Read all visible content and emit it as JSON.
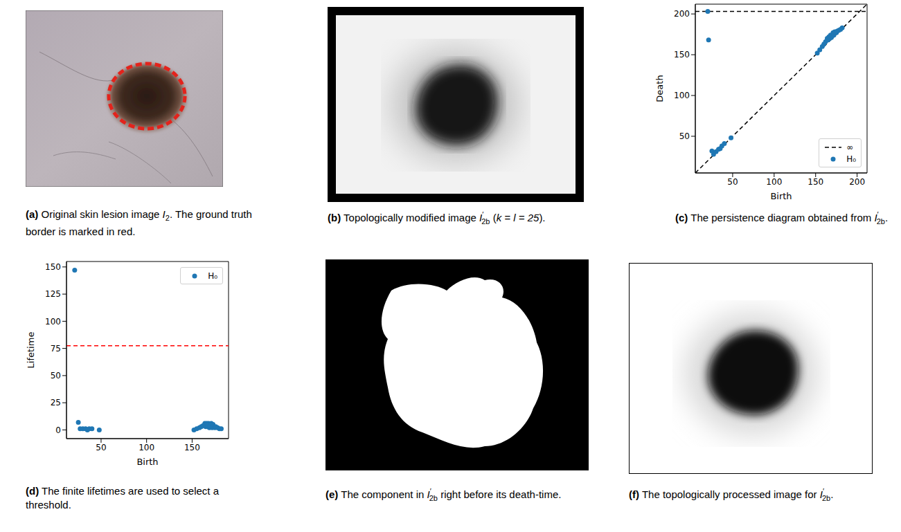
{
  "captions": [
    {
      "label": "(a)",
      "parts": [
        "Original skin lesion image ",
        {
          "math": "I",
          "sub": "2"
        },
        ". The ground truth border is marked in red."
      ]
    },
    {
      "label": "(b)",
      "parts": [
        "Topologically modified image ",
        {
          "math": "I",
          "sup": "′",
          "sub": "2b"
        },
        " (",
        {
          "math": "k = l = 25"
        },
        ")."
      ]
    },
    {
      "label": "(c)",
      "parts": [
        "The persistence diagram obtained from ",
        {
          "math": "I",
          "sup": "′",
          "sub": "2b"
        },
        "."
      ]
    },
    {
      "label": "(d)",
      "parts": [
        "The finite lifetimes are used to select a threshold."
      ]
    },
    {
      "label": "(e)",
      "parts": [
        "The component in ",
        {
          "math": "I",
          "sup": "′",
          "sub": "2b"
        },
        " right before its death-time."
      ]
    },
    {
      "label": "(f)",
      "parts": [
        "The topologically processed image for ",
        {
          "math": "I",
          "sup": "′",
          "sub": "2b"
        },
        "."
      ]
    }
  ],
  "chart_data": [
    {
      "type": "scatter",
      "xlabel": "Birth",
      "ylabel": "Death",
      "xlim": [
        5,
        212
      ],
      "ylim": [
        5,
        212
      ],
      "xticks": [
        50,
        100,
        150,
        200
      ],
      "yticks": [
        50,
        100,
        150,
        200
      ],
      "grid": false,
      "legend": "lower right",
      "reference_lines": [
        {
          "name": "∞",
          "y": 203,
          "color": "#000000",
          "line_style": "dashed"
        }
      ],
      "series": [
        {
          "type": "line",
          "color": "#000000",
          "line_style": "dashed",
          "x": [
            5,
            212
          ],
          "y": [
            5,
            212
          ]
        },
        {
          "name": "H₀",
          "color": "#1f77b4",
          "marker": "circle",
          "x": [
            20,
            21,
            25,
            27,
            30,
            33,
            35,
            37,
            40,
            48,
            152,
            155,
            158,
            160,
            162,
            164,
            165,
            166,
            167,
            168,
            169,
            170,
            171,
            172,
            173,
            175,
            176,
            178,
            180,
            182
          ],
          "y": [
            203,
            168,
            32,
            28,
            31,
            34,
            35,
            38,
            41,
            48,
            152,
            156,
            160,
            163,
            166,
            170,
            168,
            172,
            170,
            174,
            171,
            173,
            177,
            174,
            178,
            177,
            179,
            180,
            181,
            183
          ]
        }
      ]
    },
    {
      "type": "scatter",
      "xlabel": "Birth",
      "ylabel": "Lifetime",
      "xlim": [
        12,
        190
      ],
      "ylim": [
        -8,
        155
      ],
      "xticks": [
        50,
        100,
        150
      ],
      "yticks": [
        0,
        25,
        50,
        75,
        100,
        125,
        150
      ],
      "grid": false,
      "legend": "upper right",
      "reference_lines": [
        {
          "y": 77.5,
          "color": "#ff0000",
          "line_style": "dashed"
        }
      ],
      "series": [
        {
          "name": "H₀",
          "color": "#1f77b4",
          "marker": "circle",
          "x": [
            21,
            25,
            27,
            30,
            33,
            35,
            37,
            40,
            48,
            152,
            155,
            158,
            160,
            162,
            164,
            165,
            166,
            167,
            168,
            169,
            170,
            171,
            172,
            173,
            175,
            176,
            178,
            180,
            182
          ],
          "y": [
            147,
            7,
            1,
            1,
            1,
            0,
            1,
            1,
            0,
            0,
            1,
            2,
            3,
            4,
            6,
            3,
            6,
            3,
            6,
            2,
            3,
            6,
            2,
            5,
            2,
            3,
            2,
            1,
            1
          ]
        }
      ]
    }
  ]
}
